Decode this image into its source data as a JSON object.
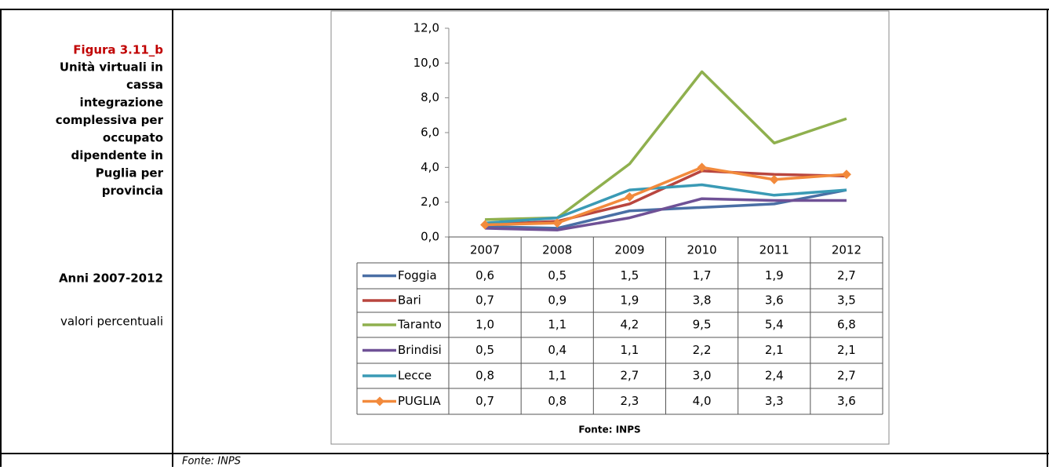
{
  "caption": {
    "figure": "Figura 3.11_b",
    "title_lines": [
      "Unità virtuali in",
      "cassa",
      "integrazione",
      "complessiva per",
      "occupato",
      "dipendente in",
      "Puglia per",
      "provincia"
    ],
    "period": "Anni 2007-2012",
    "unit": "valori percentuali"
  },
  "footer_source": "Fonte: INPS",
  "chart_data": {
    "type": "line",
    "source": "Fonte: INPS",
    "categories": [
      "2007",
      "2008",
      "2009",
      "2010",
      "2011",
      "2012"
    ],
    "ylim": [
      0,
      12
    ],
    "yticks": [
      {
        "value": 0,
        "label": "0,0"
      },
      {
        "value": 2,
        "label": "2,0"
      },
      {
        "value": 4,
        "label": "4,0"
      },
      {
        "value": 6,
        "label": "6,0"
      },
      {
        "value": 8,
        "label": "8,0"
      },
      {
        "value": 10,
        "label": "10,0"
      },
      {
        "value": 12,
        "label": "12,0"
      }
    ],
    "series": [
      {
        "name": "Foggia",
        "color": "#4a6fa5",
        "values": [
          0.6,
          0.5,
          1.5,
          1.7,
          1.9,
          2.7
        ],
        "value_labels": [
          "0,6",
          "0,5",
          "1,5",
          "1,7",
          "1,9",
          "2,7"
        ]
      },
      {
        "name": "Bari",
        "color": "#b9463f",
        "values": [
          0.7,
          0.9,
          1.9,
          3.8,
          3.6,
          3.5
        ],
        "value_labels": [
          "0,7",
          "0,9",
          "1,9",
          "3,8",
          "3,6",
          "3,5"
        ]
      },
      {
        "name": "Taranto",
        "color": "#8fb04e",
        "values": [
          1.0,
          1.1,
          4.2,
          9.5,
          5.4,
          6.8
        ],
        "value_labels": [
          "1,0",
          "1,1",
          "4,2",
          "9,5",
          "5,4",
          "6,8"
        ]
      },
      {
        "name": "Brindisi",
        "color": "#6f5196",
        "values": [
          0.5,
          0.4,
          1.1,
          2.2,
          2.1,
          2.1
        ],
        "value_labels": [
          "0,5",
          "0,4",
          "1,1",
          "2,2",
          "2,1",
          "2,1"
        ]
      },
      {
        "name": "Lecce",
        "color": "#3a9ab5",
        "values": [
          0.8,
          1.1,
          2.7,
          3.0,
          2.4,
          2.7
        ],
        "value_labels": [
          "0,8",
          "1,1",
          "2,7",
          "3,0",
          "2,4",
          "2,7"
        ]
      },
      {
        "name": "PUGLIA",
        "color": "#f28a3c",
        "marker": "diamond",
        "values": [
          0.7,
          0.8,
          2.3,
          4.0,
          3.3,
          3.6
        ],
        "value_labels": [
          "0,7",
          "0,8",
          "2,3",
          "4,0",
          "3,3",
          "3,6"
        ]
      }
    ]
  }
}
